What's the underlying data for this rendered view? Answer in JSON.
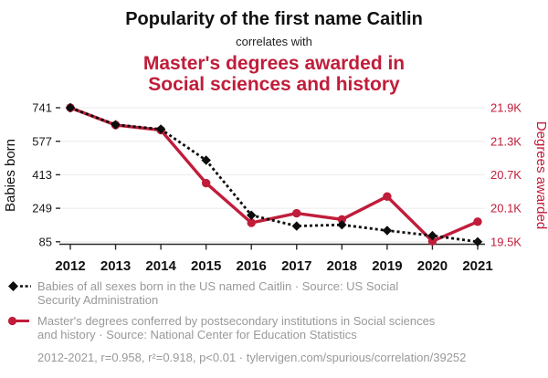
{
  "header": {
    "title": "Popularity of the first name Caitlin",
    "subtitle": "correlates with",
    "secondary_title": "Master's degrees awarded in\nSocial sciences and history"
  },
  "chart_data": {
    "type": "line",
    "x": [
      2012,
      2013,
      2014,
      2015,
      2016,
      2017,
      2018,
      2019,
      2020,
      2021
    ],
    "x_tick_labels": [
      "2012",
      "2013",
      "2014",
      "2015",
      "2016",
      "2017",
      "2018",
      "2019",
      "2020",
      "2021"
    ],
    "series": [
      {
        "name": "Babies of all sexes born in the US named Caitlin",
        "axis": "left",
        "color": "#0d0d0d",
        "line_style": "dashed",
        "marker": "diamond",
        "values": [
          741,
          658,
          636,
          484,
          215,
          162,
          168,
          140,
          115,
          85
        ]
      },
      {
        "name": "Master's degrees conferred by postsecondary institutions in Social sciences and history",
        "axis": "right",
        "color": "#c01d3a",
        "line_style": "solid",
        "marker": "circle",
        "values": [
          21900,
          21590,
          21500,
          20550,
          19840,
          20010,
          19900,
          20310,
          19510,
          19860
        ]
      }
    ],
    "left_axis": {
      "label": "Babies born",
      "ticks": [
        741,
        577,
        413,
        249,
        85
      ],
      "tick_labels": [
        "741",
        "577",
        "413",
        "249",
        "85"
      ],
      "range": [
        85,
        741
      ]
    },
    "right_axis": {
      "label": "Degrees awarded",
      "ticks": [
        21900,
        21300,
        20700,
        20100,
        19500
      ],
      "tick_labels": [
        "21.9K",
        "21.3K",
        "20.7K",
        "20.1K",
        "19.5K"
      ],
      "range": [
        19500,
        21900
      ]
    },
    "grid": true,
    "legend_position": "bottom"
  },
  "legend": {
    "items": [
      {
        "marker": "diamond-dashed",
        "color": "#0d0d0d",
        "label": "Babies of all sexes born in the US named Caitlin · Source: US Social\nSecurity Administration"
      },
      {
        "marker": "circle-line",
        "color": "#c01d3a",
        "label": "Master's degrees conferred by postsecondary institutions in Social sciences\nand history · Source: National Center for Education Statistics"
      }
    ],
    "footer": "2012-2021, r=0.958, r²=0.918, p<0.01 · tylervigen.com/spurious/correlation/39252"
  },
  "colors": {
    "accent_red": "#c01d3a",
    "text_black": "#111111",
    "text_gray": "#999999",
    "gridline": "#ebebeb",
    "axis": "#2a2a2a"
  }
}
